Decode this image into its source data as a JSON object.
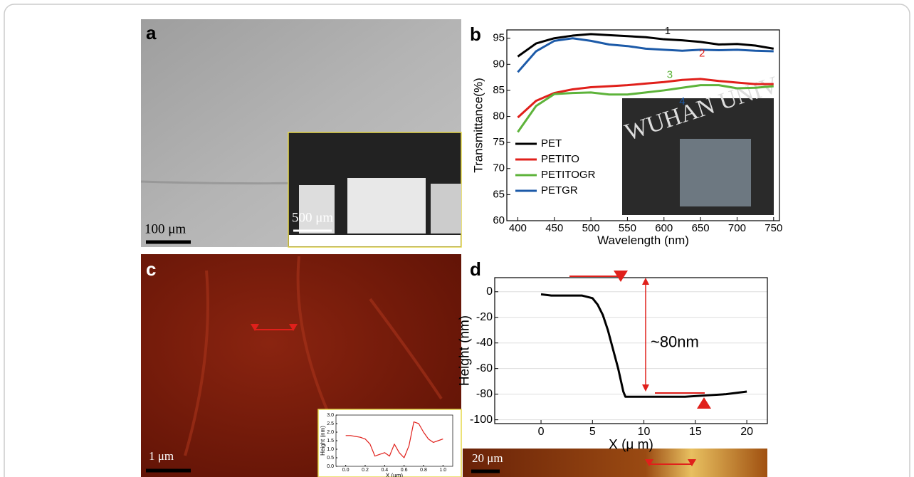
{
  "figure": {
    "panel_labels": [
      "a",
      "b",
      "c",
      "d"
    ],
    "scale_bars": [
      "100 μm",
      "500 μm",
      "1 μm",
      "20 μm"
    ],
    "photo_text": "WUHAN UNIV"
  },
  "chart_data": [
    {
      "type": "line",
      "xlabel": "Wavelength (nm)",
      "ylabel": "Transmittance(%)",
      "x": [
        400,
        425,
        450,
        475,
        500,
        525,
        550,
        575,
        600,
        625,
        650,
        675,
        700,
        725,
        750
      ],
      "series": [
        {
          "name": "PET",
          "color": "#000000",
          "values": [
            91.5,
            94,
            95,
            95.5,
            95.8,
            95.6,
            95.4,
            95.2,
            94.8,
            94.6,
            94.3,
            93.8,
            93.9,
            93.6,
            93.0
          ]
        },
        {
          "name": "PETITO",
          "color": "#e0201b",
          "values": [
            79.8,
            83,
            84.5,
            85.2,
            85.6,
            85.8,
            86,
            86.3,
            86.6,
            87,
            87.2,
            86.8,
            86.5,
            86.2,
            86.2
          ]
        },
        {
          "name": "PETITOGR",
          "color": "#5db33a",
          "values": [
            77,
            82,
            84.3,
            84.5,
            84.6,
            84.2,
            84.2,
            84.6,
            85,
            85.5,
            86,
            86,
            85.4,
            85.5,
            85.8
          ]
        },
        {
          "name": "PETGR",
          "color": "#1c5aa8",
          "values": [
            88.5,
            92.5,
            94.5,
            95,
            94.5,
            93.8,
            93.5,
            93,
            92.8,
            92.6,
            92.8,
            92.7,
            92.8,
            92.6,
            92.5
          ]
        }
      ],
      "annotations": [
        "1",
        "2",
        "3",
        "4"
      ],
      "xlim": [
        385,
        758
      ],
      "ylim": [
        60,
        96.6
      ],
      "xticks": [
        400,
        450,
        500,
        550,
        600,
        650,
        700,
        750
      ],
      "yticks": [
        60,
        65,
        70,
        75,
        80,
        85,
        90,
        95
      ],
      "grid": false,
      "legend": "lower-left"
    },
    {
      "type": "line",
      "xlabel": "X (μ m)",
      "ylabel": "Height (nm)",
      "x": [
        0,
        1,
        2,
        3,
        4,
        5,
        5.5,
        6,
        6.5,
        7,
        7.5,
        8,
        8.2,
        9,
        10,
        12,
        14,
        16,
        18,
        20
      ],
      "values": [
        -2,
        -3,
        -3,
        -3,
        -3,
        -5,
        -10,
        -18,
        -30,
        -45,
        -60,
        -78,
        -82,
        -82,
        -82,
        -82,
        -82,
        -81,
        -80,
        -78
      ],
      "color": "#000000",
      "annotations": [
        "~80nm"
      ],
      "xlim": [
        -4.5,
        22
      ],
      "ylim": [
        -103,
        11
      ],
      "xticks": [
        0,
        5,
        10,
        15,
        20
      ],
      "yticks": [
        0,
        -20,
        -40,
        -60,
        -80,
        -100
      ],
      "grid": true
    },
    {
      "type": "line",
      "xlabel": "X (μm)",
      "ylabel": "Height (nm)",
      "x": [
        0,
        0.05,
        0.1,
        0.15,
        0.2,
        0.25,
        0.3,
        0.35,
        0.4,
        0.45,
        0.5,
        0.55,
        0.6,
        0.65,
        0.7,
        0.75,
        0.8,
        0.85,
        0.9,
        0.95,
        1.0
      ],
      "values": [
        1.8,
        1.8,
        1.75,
        1.7,
        1.6,
        1.3,
        0.6,
        0.7,
        0.8,
        0.6,
        1.3,
        0.8,
        0.5,
        1.2,
        2.6,
        2.5,
        2.0,
        1.6,
        1.4,
        1.5,
        1.6
      ],
      "color": "#e0201b",
      "xlim": [
        -0.1,
        1.1
      ],
      "ylim": [
        0,
        3
      ],
      "xticks": [
        {
          "value": 0,
          "label": "0.0"
        },
        {
          "value": 0.2,
          "label": "0.2"
        },
        {
          "value": 0.4,
          "label": "0.4"
        },
        {
          "value": 0.6,
          "label": "0.6"
        },
        {
          "value": 0.8,
          "label": "0.8"
        },
        {
          "value": 1,
          "label": "1.0"
        }
      ],
      "yticks": [
        {
          "value": 0,
          "label": "0.0"
        },
        {
          "value": 0.5,
          "label": "0.5"
        },
        {
          "value": 1,
          "label": "1.0"
        },
        {
          "value": 1.5,
          "label": "1.5"
        },
        {
          "value": 2,
          "label": "2.0"
        },
        {
          "value": 2.5,
          "label": "2.5"
        },
        {
          "value": 3,
          "label": "3.0"
        }
      ],
      "grid": false
    }
  ]
}
